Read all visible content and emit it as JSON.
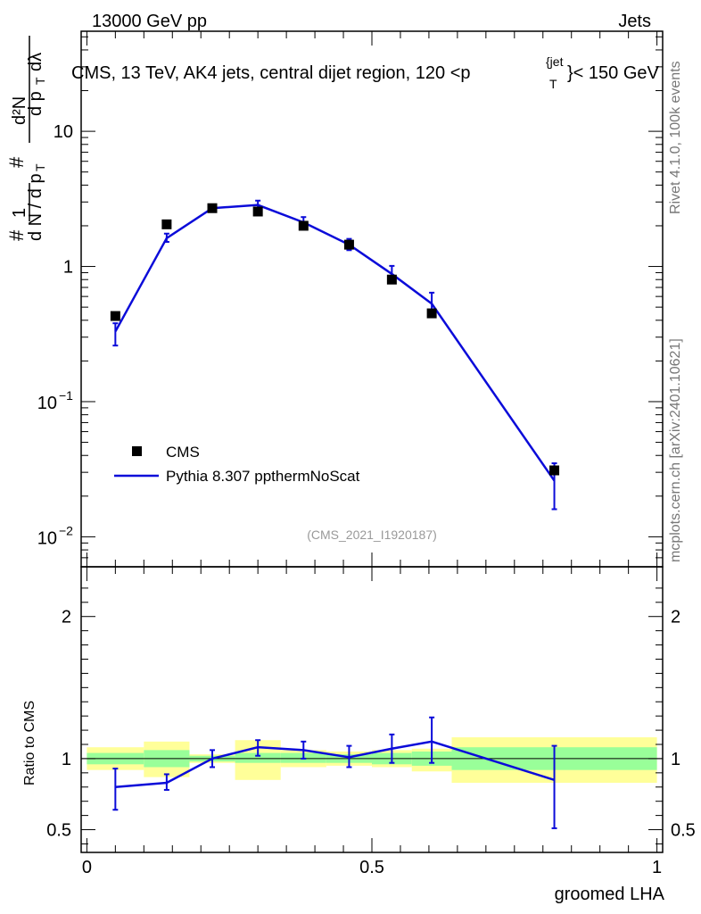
{
  "header": {
    "energy": "13000 GeV pp",
    "category": "Jets",
    "title": "CMS, 13 TeV, AK4 jets, central dijet region, 120 <p",
    "title_sup": "{jet",
    "title_sub": "T",
    "title_end": "}< 150 GeV"
  },
  "side_labels": {
    "rivet": "Rivet 4.1.0,  100k events",
    "mcplots": "mcplots.cern.ch [arXiv:2401.10621]"
  },
  "analysis_id": "(CMS_2021_I1920187)",
  "colors": {
    "mc": "#0b0bd9",
    "band_inner": "#99ff99",
    "band_outer": "#ffff99"
  },
  "chart_data": [
    {
      "type": "scatter",
      "panel": "main",
      "ylabel": "# 1/(dN/dp_T) # d²N/(dp_T dλ)",
      "yscale": "log",
      "ylim": [
        0.006,
        55
      ],
      "xlim": [
        -0.01,
        1.01
      ],
      "yticks": [
        "10^{-2}",
        "10^{-1}",
        "1",
        "10"
      ],
      "legend": {
        "position": "middle-left",
        "entries": [
          "CMS",
          "Pythia 8.307 ppthermNoScat"
        ]
      },
      "x": [
        0.05,
        0.14,
        0.22,
        0.3,
        0.38,
        0.46,
        0.535,
        0.605,
        0.82
      ],
      "series": [
        {
          "name": "CMS",
          "marker": "square",
          "values": [
            0.43,
            2.05,
            2.7,
            2.55,
            2.0,
            1.45,
            0.8,
            0.45,
            0.031
          ]
        },
        {
          "name": "Pythia 8.307 ppthermNoScat",
          "marker": "line",
          "values": [
            0.33,
            1.62,
            2.7,
            2.85,
            2.12,
            1.45,
            0.88,
            0.53,
            0.026
          ],
          "err_low": [
            0.26,
            1.52,
            2.56,
            2.62,
            1.97,
            1.32,
            0.77,
            0.43,
            0.016
          ],
          "err_high": [
            0.38,
            1.75,
            2.84,
            3.07,
            2.32,
            1.6,
            1.01,
            0.64,
            0.035
          ]
        }
      ]
    },
    {
      "type": "line",
      "panel": "ratio",
      "ylabel": "Ratio to CMS",
      "xlabel": "groomed LHA",
      "ylim": [
        0.34,
        2.35
      ],
      "xticks": [
        "0",
        "0.5",
        "1"
      ],
      "yticks": [
        "0.5",
        "1",
        "2"
      ],
      "bins": [
        [
          0,
          0.1
        ],
        [
          0.1,
          0.18
        ],
        [
          0.18,
          0.26
        ],
        [
          0.26,
          0.34
        ],
        [
          0.34,
          0.42
        ],
        [
          0.42,
          0.5
        ],
        [
          0.5,
          0.57
        ],
        [
          0.57,
          0.64
        ],
        [
          0.64,
          1.0
        ]
      ],
      "band_inner": [
        [
          0.96,
          1.04
        ],
        [
          0.94,
          1.06
        ],
        [
          0.98,
          1.02
        ],
        [
          0.97,
          1.04
        ],
        [
          0.97,
          1.04
        ],
        [
          0.97,
          1.03
        ],
        [
          0.96,
          1.04
        ],
        [
          0.95,
          1.05
        ],
        [
          0.92,
          1.08
        ]
      ],
      "band_outer": [
        [
          0.92,
          1.08
        ],
        [
          0.87,
          1.12
        ],
        [
          0.97,
          1.03
        ],
        [
          0.85,
          1.13
        ],
        [
          0.94,
          1.06
        ],
        [
          0.95,
          1.05
        ],
        [
          0.94,
          1.06
        ],
        [
          0.91,
          1.07
        ],
        [
          0.83,
          1.15
        ]
      ],
      "x": [
        0.05,
        0.14,
        0.22,
        0.3,
        0.38,
        0.46,
        0.535,
        0.605,
        0.82
      ],
      "values": [
        0.8,
        0.83,
        1.0,
        1.08,
        1.06,
        1.01,
        1.07,
        1.12,
        0.85
      ],
      "err_low": [
        0.64,
        0.78,
        0.94,
        1.02,
        1.0,
        0.94,
        0.97,
        0.97,
        0.51
      ],
      "err_high": [
        0.93,
        0.89,
        1.06,
        1.13,
        1.12,
        1.09,
        1.17,
        1.29,
        1.09
      ]
    }
  ]
}
